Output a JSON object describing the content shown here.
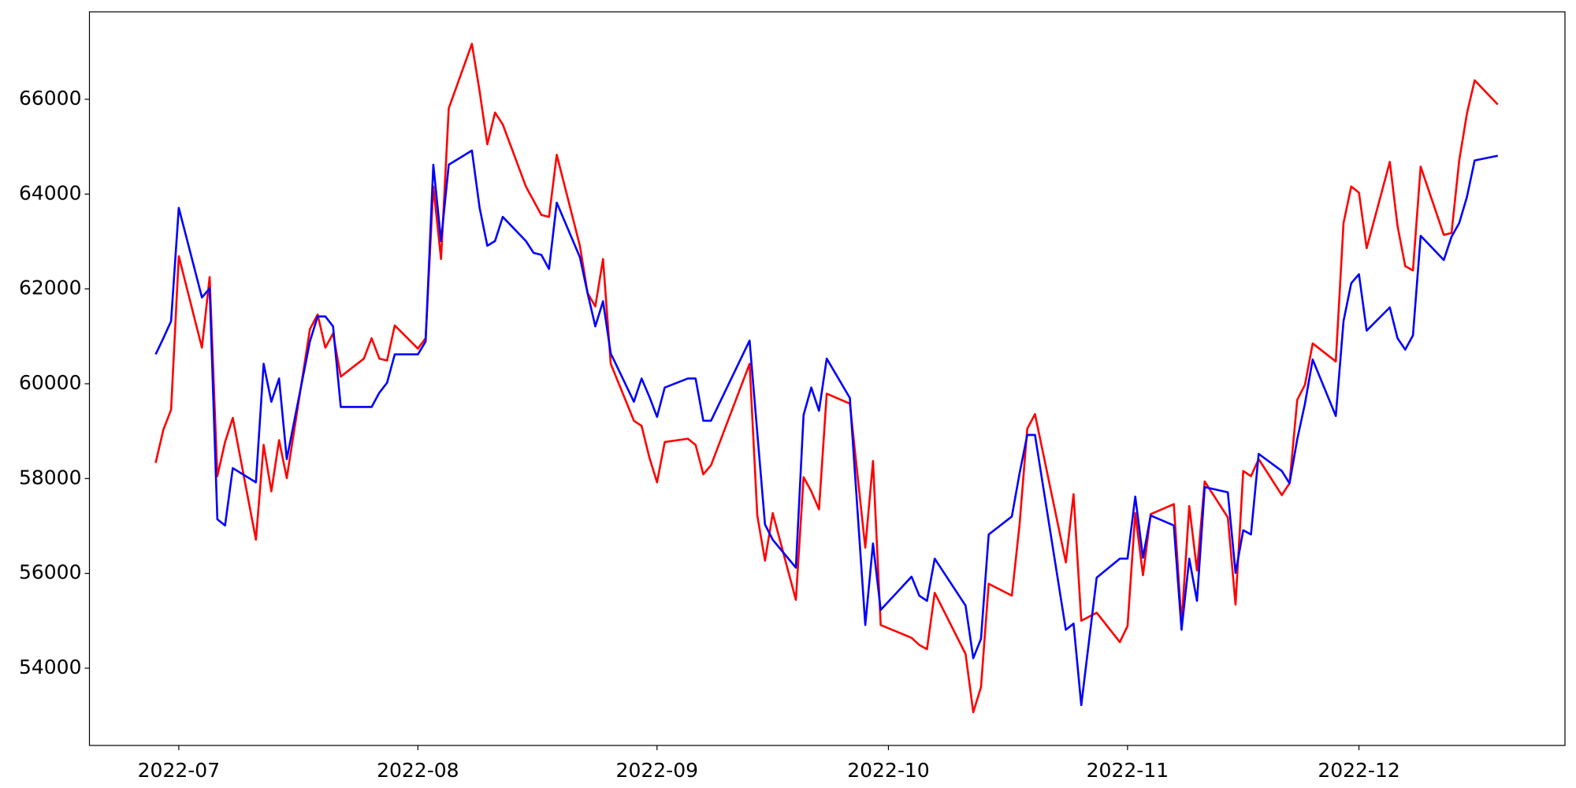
{
  "chart_data": {
    "type": "line",
    "x": [
      "2022-06-28",
      "2022-06-29",
      "2022-06-30",
      "2022-07-01",
      "2022-07-04",
      "2022-07-05",
      "2022-07-06",
      "2022-07-07",
      "2022-07-08",
      "2022-07-11",
      "2022-07-12",
      "2022-07-13",
      "2022-07-14",
      "2022-07-15",
      "2022-07-18",
      "2022-07-19",
      "2022-07-20",
      "2022-07-21",
      "2022-07-22",
      "2022-07-25",
      "2022-07-26",
      "2022-07-27",
      "2022-07-28",
      "2022-07-29",
      "2022-08-01",
      "2022-08-02",
      "2022-08-03",
      "2022-08-04",
      "2022-08-05",
      "2022-08-08",
      "2022-08-09",
      "2022-08-10",
      "2022-08-11",
      "2022-08-12",
      "2022-08-15",
      "2022-08-16",
      "2022-08-17",
      "2022-08-18",
      "2022-08-19",
      "2022-08-22",
      "2022-08-23",
      "2022-08-24",
      "2022-08-25",
      "2022-08-26",
      "2022-08-29",
      "2022-08-30",
      "2022-08-31",
      "2022-09-01",
      "2022-09-02",
      "2022-09-05",
      "2022-09-06",
      "2022-09-07",
      "2022-09-08",
      "2022-09-13",
      "2022-09-14",
      "2022-09-15",
      "2022-09-16",
      "2022-09-19",
      "2022-09-20",
      "2022-09-21",
      "2022-09-22",
      "2022-09-23",
      "2022-09-26",
      "2022-09-28",
      "2022-09-29",
      "2022-09-30",
      "2022-10-04",
      "2022-10-05",
      "2022-10-06",
      "2022-10-07",
      "2022-10-11",
      "2022-10-12",
      "2022-10-13",
      "2022-10-14",
      "2022-10-17",
      "2022-10-18",
      "2022-10-19",
      "2022-10-20",
      "2022-10-24",
      "2022-10-25",
      "2022-10-26",
      "2022-10-28",
      "2022-10-31",
      "2022-11-01",
      "2022-11-02",
      "2022-11-03",
      "2022-11-04",
      "2022-11-07",
      "2022-11-08",
      "2022-11-09",
      "2022-11-10",
      "2022-11-11",
      "2022-11-14",
      "2022-11-15",
      "2022-11-16",
      "2022-11-17",
      "2022-11-18",
      "2022-11-21",
      "2022-11-22",
      "2022-11-23",
      "2022-11-24",
      "2022-11-25",
      "2022-11-28",
      "2022-11-29",
      "2022-11-30",
      "2022-12-01",
      "2022-12-02",
      "2022-12-05",
      "2022-12-06",
      "2022-12-07",
      "2022-12-08",
      "2022-12-09",
      "2022-12-12",
      "2022-12-13",
      "2022-12-14",
      "2022-12-15",
      "2022-12-16",
      "2022-12-19"
    ],
    "series": [
      {
        "color": "#ff0000",
        "values": [
          58330,
          59030,
          59450,
          62690,
          60760,
          62250,
          58050,
          58770,
          59280,
          56710,
          58710,
          57730,
          58810,
          58010,
          61150,
          61460,
          60760,
          61060,
          60150,
          60530,
          60960,
          60530,
          60490,
          61230,
          60740,
          60960,
          64160,
          62630,
          65810,
          67170,
          66170,
          65050,
          65720,
          65470,
          64160,
          63860,
          63560,
          63520,
          64830,
          62910,
          61910,
          61630,
          62630,
          60420,
          59220,
          59110,
          58450,
          57920,
          58770,
          58840,
          58710,
          58090,
          58280,
          60420,
          57220,
          56270,
          57270,
          55440,
          58030,
          57730,
          57350,
          59790,
          59580,
          56540,
          58370,
          54910,
          54640,
          54490,
          54400,
          55590,
          54300,
          53070,
          53600,
          55780,
          55530,
          57030,
          59050,
          59360,
          56230,
          57670,
          55000,
          55170,
          54550,
          54890,
          57270,
          55960,
          57250,
          57460,
          54940,
          57420,
          56060,
          57940,
          57180,
          55340,
          58160,
          58050,
          58410,
          57650,
          57900,
          59660,
          59980,
          60850,
          60470,
          63390,
          64160,
          64030,
          62860,
          64680,
          63330,
          62480,
          62390,
          64580,
          63140,
          63180,
          64710,
          65700,
          66400,
          65890
        ]
      },
      {
        "color": "#0000ff",
        "values": [
          60620,
          60960,
          61320,
          63710,
          61820,
          62010,
          57140,
          57010,
          58220,
          57920,
          60420,
          59620,
          60110,
          58410,
          60890,
          61420,
          61420,
          61210,
          59510,
          59510,
          59510,
          59810,
          60020,
          60620,
          60620,
          60890,
          64620,
          63010,
          64620,
          64920,
          63710,
          62910,
          63010,
          63520,
          63010,
          62760,
          62720,
          62420,
          63820,
          62670,
          61910,
          61210,
          61740,
          60640,
          59620,
          60110,
          59730,
          59300,
          59920,
          60110,
          60110,
          59220,
          59220,
          60910,
          58960,
          57030,
          56710,
          56120,
          59340,
          59920,
          59430,
          60530,
          59700,
          54910,
          56630,
          55230,
          55930,
          55530,
          55420,
          56310,
          55320,
          54210,
          54620,
          56820,
          57200,
          58110,
          58920,
          58920,
          54810,
          54940,
          53220,
          55910,
          56310,
          56310,
          57620,
          56330,
          57220,
          57010,
          54810,
          56310,
          55420,
          57820,
          57710,
          56010,
          56910,
          56820,
          58520,
          58160,
          57900,
          58830,
          59580,
          60510,
          59320,
          61320,
          62120,
          62310,
          61120,
          61610,
          60960,
          60720,
          61020,
          63120,
          62610,
          63100,
          63390,
          63940,
          64710,
          64810
        ]
      }
    ],
    "xlim": [
      "2022-06-19T10:00:00Z",
      "2022-12-27T17:00:00Z"
    ],
    "xticks": [
      {
        "value": "2022-07-01",
        "label": "2022-07"
      },
      {
        "value": "2022-08-01",
        "label": "2022-08"
      },
      {
        "value": "2022-09-01",
        "label": "2022-09"
      },
      {
        "value": "2022-10-01",
        "label": "2022-10"
      },
      {
        "value": "2022-11-01",
        "label": "2022-11"
      },
      {
        "value": "2022-12-01",
        "label": "2022-12"
      }
    ],
    "ylim": [
      52370,
      67845
    ],
    "yticks": [
      54000,
      56000,
      58000,
      60000,
      62000,
      64000,
      66000
    ],
    "grid": false
  }
}
